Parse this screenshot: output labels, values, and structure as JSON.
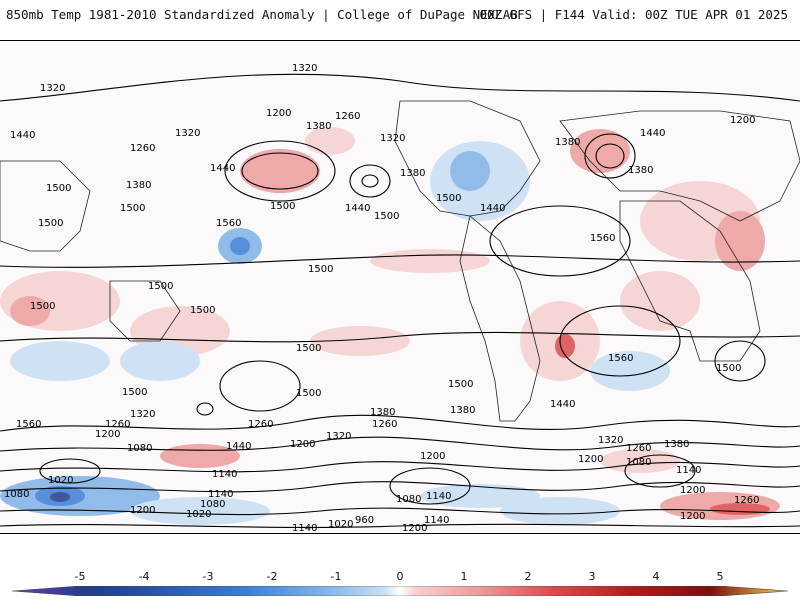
{
  "header": {
    "left_title": "850mb Temp 1981-2010 Standardized Anomaly | College of DuPage NEXLAB",
    "right_title": "00Z GFS | F144 Valid: 00Z TUE APR 01 2025"
  },
  "contour_labels": [
    "1320",
    "1200",
    "1260",
    "1380",
    "1320",
    "1260",
    "1440",
    "1380",
    "1500",
    "1560",
    "1500",
    "1440",
    "1320",
    "1380",
    "1380",
    "1500",
    "1440",
    "1500",
    "1560",
    "1440",
    "1500",
    "1500",
    "1500",
    "1500",
    "1500",
    "1560",
    "1500",
    "1500",
    "1500",
    "1440",
    "1380",
    "1380",
    "1320",
    "1260",
    "1200",
    "1080",
    "1320",
    "1440",
    "1260",
    "1200",
    "1140",
    "1080",
    "1020",
    "1140",
    "1200",
    "1080",
    "1020",
    "1140",
    "1020",
    "960",
    "1200",
    "1080",
    "1140",
    "1200",
    "1260",
    "1320",
    "1380",
    "1260",
    "1200",
    "1080",
    "1140",
    "1200",
    "1260",
    "1200",
    "1140",
    "1560",
    "1500",
    "1440",
    "1320",
    "1200",
    "1380",
    "1500",
    "1500"
  ],
  "colors": {
    "neg5": "#6a3fb0",
    "neg4": "#1f3d8a",
    "neg3": "#3b7dd8",
    "neg2": "#7fb2e8",
    "neg1": "#c8dff5",
    "zero": "#ffffff",
    "pos1": "#f6cfcf",
    "pos2": "#ee9c9c",
    "pos3": "#d94a4a",
    "pos4": "#b01c1c",
    "pos5": "#ffd24a"
  },
  "colorbar": {
    "ticks": [
      "-5",
      "-4",
      "-3",
      "-2",
      "-1",
      "0",
      "1",
      "2",
      "3",
      "4",
      "5"
    ]
  }
}
